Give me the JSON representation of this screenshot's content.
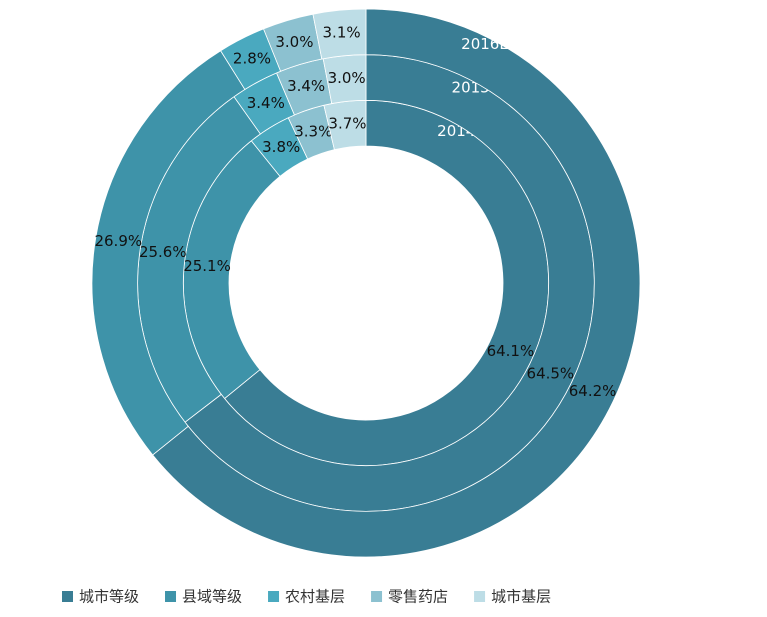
{
  "chart_data": {
    "type": "donut",
    "categories": [
      "城市等级",
      "县域等级",
      "农村基层",
      "零售药店",
      "城市基层"
    ],
    "colors": [
      "#397d94",
      "#3e93a9",
      "#4aa9bf",
      "#8cc1d0",
      "#bddde6"
    ],
    "series": [
      {
        "name": "2014",
        "values": [
          64.1,
          25.1,
          3.8,
          3.3,
          3.7
        ],
        "value_labels": [
          "64.1%",
          "25.1%",
          "3.8%",
          "3.3%",
          "3.7%"
        ]
      },
      {
        "name": "2015",
        "values": [
          64.5,
          25.6,
          3.4,
          3.4,
          3.0
        ],
        "value_labels": [
          "64.5%",
          "25.6%",
          "3.4%",
          "3.4%",
          "3.0%"
        ]
      },
      {
        "name": "2016E",
        "values": [
          64.2,
          26.9,
          2.8,
          3.0,
          3.1
        ],
        "value_labels": [
          "64.2%",
          "26.9%",
          "2.8%",
          "3.0%",
          "3.1%"
        ]
      }
    ],
    "legend": "bottom"
  }
}
